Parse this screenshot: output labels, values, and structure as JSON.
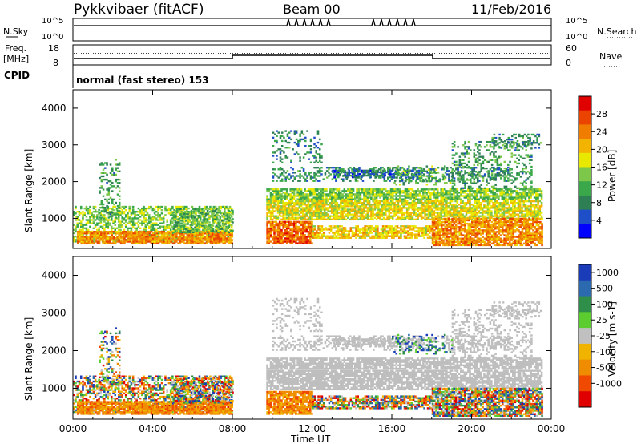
{
  "header": {
    "radar": "Pykkvibaer (fitACF)",
    "beam": "Beam 00",
    "date": "11/Feb/2016"
  },
  "panels": {
    "nsky": {
      "label": "N.Sky",
      "ticks": [
        "10^5",
        "10^0"
      ],
      "right_label": "N.Search",
      "right_ticks": [
        "10^5",
        "10^0"
      ]
    },
    "freq": {
      "label_top": "Freq.",
      "label_unit": "[MHz]",
      "ticks": [
        "18",
        "8"
      ],
      "right_label": "Nave",
      "right_ticks": [
        "60",
        "0"
      ]
    },
    "cpid": {
      "label": "CPID",
      "text": "normal (fast stereo) 153"
    }
  },
  "colors": {
    "power": [
      "#0000ff",
      "#1f4fc8",
      "#2f7f55",
      "#3aa84a",
      "#7dc84a",
      "#e8e800",
      "#f2b400",
      "#f07d00",
      "#ea4400",
      "#e00000"
    ],
    "velocity": [
      "#1a3cb8",
      "#2c6ab0",
      "#2f8f4a",
      "#5ccd2e",
      "#c0c0c0",
      "#f0b400",
      "#f08c00",
      "#f04a00",
      "#e00000"
    ],
    "ground_scatter": "#bebebe"
  },
  "chart_data": [
    {
      "type": "heatmap",
      "title": "Power",
      "ylabel": "Slant Range [km]",
      "ylim": [
        180,
        4500
      ],
      "yticks": [
        "1000",
        "2000",
        "3000",
        "4000"
      ],
      "colorbar": {
        "label": "Power [dB]",
        "ticks": [
          "4",
          "8",
          "12",
          "16",
          "20",
          "24",
          "28"
        ],
        "range": [
          0,
          32
        ]
      }
    },
    {
      "type": "heatmap",
      "title": "Velocity",
      "xlabel": "Time UT",
      "ylabel": "Slant Range [km]",
      "ylim": [
        180,
        4500
      ],
      "xlim": [
        "00:00",
        "24:00"
      ],
      "xticks": [
        "00:00",
        "04:00",
        "08:00",
        "12:00",
        "16:00",
        "20:00",
        "00:00"
      ],
      "yticks": [
        "1000",
        "2000",
        "3000",
        "4000"
      ],
      "colorbar": {
        "label": "Velocity [m s-1]",
        "ticks": [
          "1000",
          "500",
          "100",
          "25",
          "-25",
          "-100",
          "-500",
          "-1000"
        ]
      }
    }
  ],
  "scatter_regions": [
    {
      "t": [
        0.0,
        8.0
      ],
      "r": [
        350,
        1300
      ],
      "density": 0.55,
      "pwr": 14,
      "vel": "mixed"
    },
    {
      "t": [
        0.2,
        8.0
      ],
      "r": [
        300,
        650
      ],
      "density": 0.85,
      "pwr": 24,
      "vel": "away"
    },
    {
      "t": [
        1.3,
        2.3
      ],
      "r": [
        1000,
        2600
      ],
      "density": 0.3,
      "pwr": 10,
      "vel": "mixed"
    },
    {
      "t": [
        5.0,
        8.0
      ],
      "r": [
        600,
        1250
      ],
      "density": 0.5,
      "pwr": 12,
      "vel": "mixed"
    },
    {
      "t": [
        9.7,
        23.5
      ],
      "r": [
        1500,
        1800
      ],
      "density": 0.8,
      "pwr": 14,
      "vel": "gs"
    },
    {
      "t": [
        10.0,
        22.0
      ],
      "r": [
        2000,
        2400
      ],
      "density": 0.35,
      "pwr": 8,
      "vel": "gs"
    },
    {
      "t": [
        13.0,
        17.5
      ],
      "r": [
        2100,
        2300
      ],
      "density": 0.55,
      "pwr": 6,
      "vel": "gs"
    },
    {
      "t": [
        9.7,
        23.5
      ],
      "r": [
        950,
        1450
      ],
      "density": 0.8,
      "pwr": 18,
      "vel": "gs"
    },
    {
      "t": [
        9.7,
        12.0
      ],
      "r": [
        300,
        900
      ],
      "density": 0.85,
      "pwr": 26,
      "vel": "away"
    },
    {
      "t": [
        12.0,
        18.0
      ],
      "r": [
        450,
        800
      ],
      "density": 0.7,
      "pwr": 20,
      "vel": "mixed"
    },
    {
      "t": [
        18.0,
        23.5
      ],
      "r": [
        250,
        1000
      ],
      "density": 0.8,
      "pwr": 24,
      "vel": "mixed"
    },
    {
      "t": [
        19.0,
        23.0
      ],
      "r": [
        1800,
        3100
      ],
      "density": 0.25,
      "pwr": 10,
      "vel": "gs"
    },
    {
      "t": [
        21.0,
        23.5
      ],
      "r": [
        2900,
        3300
      ],
      "density": 0.35,
      "pwr": 8,
      "vel": "gs"
    },
    {
      "t": [
        10.0,
        12.5
      ],
      "r": [
        2500,
        3400
      ],
      "density": 0.2,
      "pwr": 8,
      "vel": "gs"
    },
    {
      "t": [
        16.0,
        19.0
      ],
      "r": [
        1900,
        2400
      ],
      "density": 0.25,
      "pwr": 12,
      "vel": "toward"
    }
  ]
}
